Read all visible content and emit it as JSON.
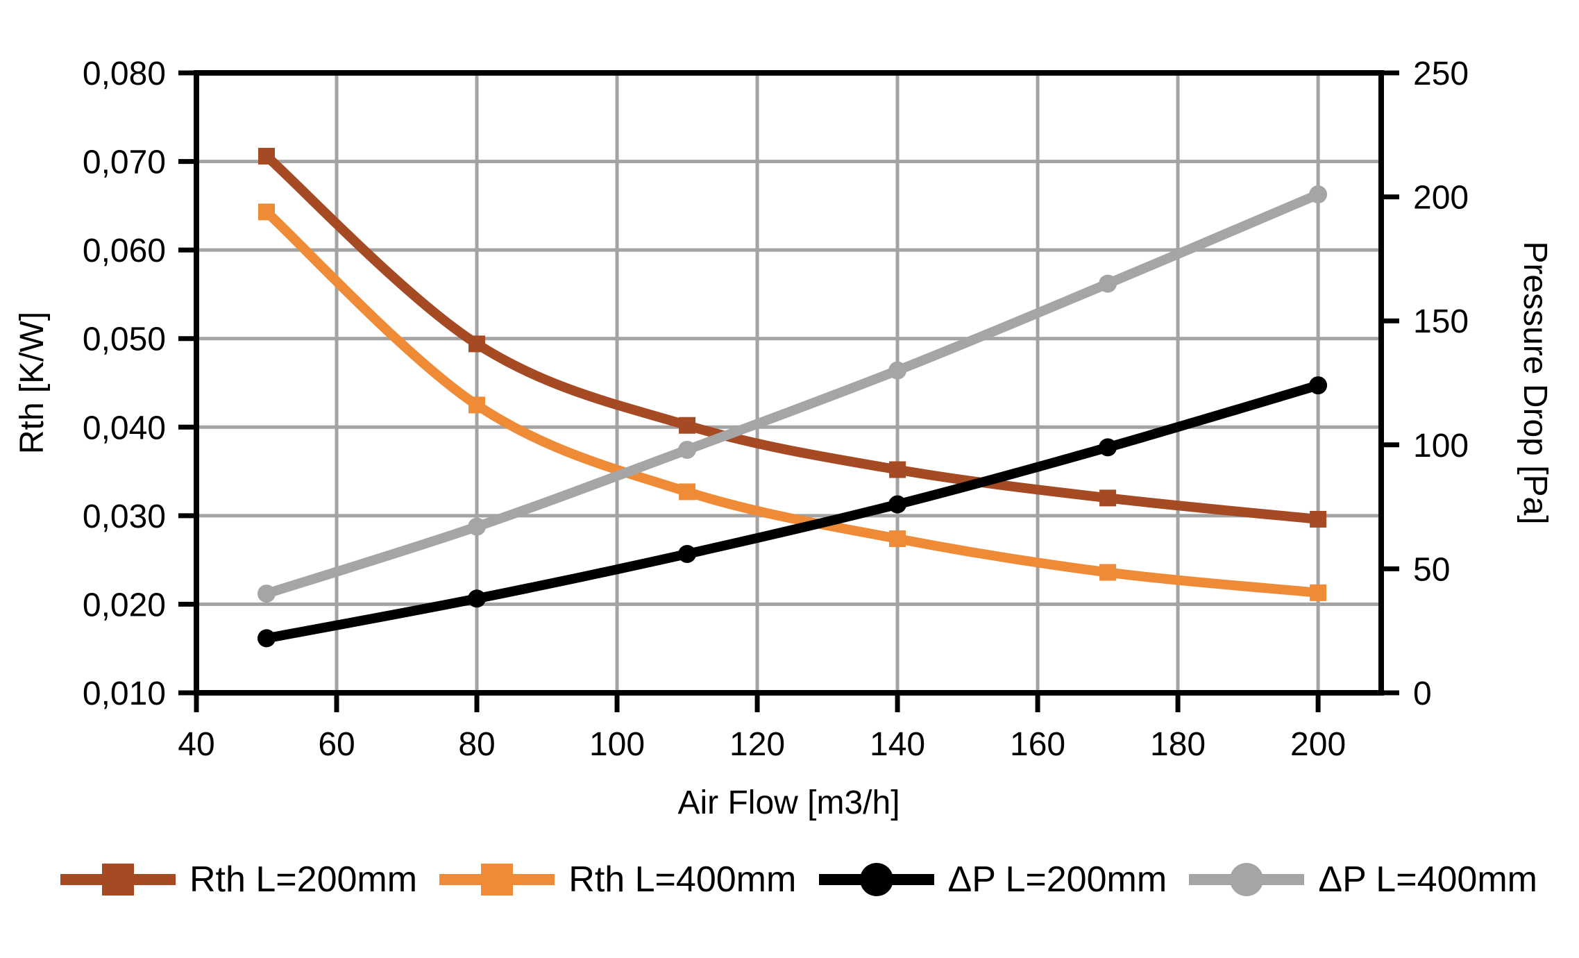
{
  "chart_data": {
    "type": "line",
    "x": [
      50,
      80,
      110,
      140,
      170,
      200
    ],
    "x_ticks": [
      40,
      60,
      80,
      100,
      120,
      140,
      160,
      180,
      200
    ],
    "xlabel": "Air Flow [m3/h]",
    "xlim": [
      40,
      209
    ],
    "grid": true,
    "legend_position": "bottom",
    "left_axis": {
      "label": "Rth [K/W]",
      "lim": [
        0.01,
        0.08
      ],
      "tick_step": 0.01,
      "tick_labels": [
        "0,010",
        "0,020",
        "0,030",
        "0,040",
        "0,050",
        "0,060",
        "0,070",
        "0,080"
      ],
      "decimal_separator": ","
    },
    "right_axis": {
      "label": "Pressure Drop [Pa]",
      "lim": [
        0,
        250
      ],
      "tick_step": 50,
      "tick_labels": [
        "0",
        "50",
        "100",
        "150",
        "200",
        "250"
      ]
    },
    "series": [
      {
        "name": "Rth L=200mm",
        "axis": "left",
        "color": "#A54A23",
        "marker": "square",
        "values": [
          0.0706,
          0.0494,
          0.0402,
          0.0352,
          0.032,
          0.0296
        ]
      },
      {
        "name": "Rth L=400mm",
        "axis": "left",
        "color": "#EF8B36",
        "marker": "square",
        "values": [
          0.0643,
          0.0425,
          0.0327,
          0.0274,
          0.0236,
          0.0213
        ]
      },
      {
        "name": "ΔP L=200mm",
        "axis": "right",
        "color": "#000000",
        "marker": "circle",
        "values": [
          22,
          38,
          56,
          76,
          99,
          124
        ]
      },
      {
        "name": "ΔP L=400mm",
        "axis": "right",
        "color": "#A5A5A5",
        "marker": "circle",
        "values": [
          40,
          67,
          98,
          130,
          165,
          201
        ]
      }
    ]
  },
  "colors": {
    "background": "#FFFFFF",
    "grid": "#A3A3A3",
    "axis": "#000000",
    "text": "#000000"
  }
}
